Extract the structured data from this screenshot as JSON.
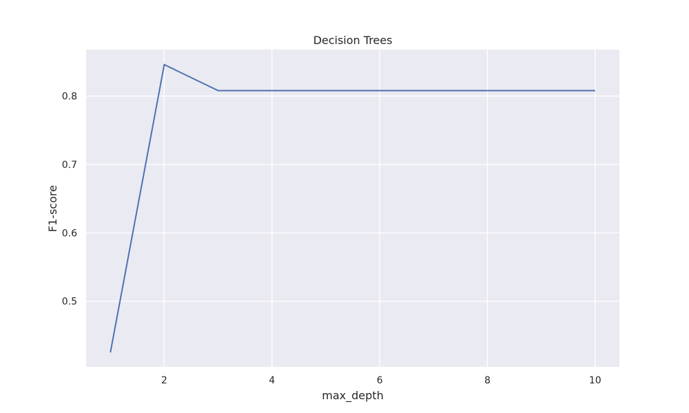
{
  "chart_data": {
    "type": "line",
    "title": "Decision Trees",
    "xlabel": "max_depth",
    "ylabel": "F1-score",
    "grid": true,
    "xlim": [
      0.55,
      10.45
    ],
    "ylim": [
      0.404,
      0.868
    ],
    "xticks": [
      2,
      4,
      6,
      8,
      10
    ],
    "yticks": [
      0.5,
      0.6,
      0.7,
      0.8
    ],
    "ytick_labels": [
      "0.5",
      "0.6",
      "0.7",
      "0.8"
    ],
    "series": [
      {
        "x": [
          1,
          2,
          3,
          4,
          5,
          6,
          7,
          8,
          9,
          10
        ],
        "y": [
          0.425,
          0.846,
          0.808,
          0.808,
          0.808,
          0.808,
          0.808,
          0.808,
          0.808,
          0.808
        ]
      }
    ],
    "colors": {
      "background": "#EAEAF2",
      "grid": "#FFFFFF",
      "line": "#4C72B0",
      "text": "#262626"
    }
  }
}
